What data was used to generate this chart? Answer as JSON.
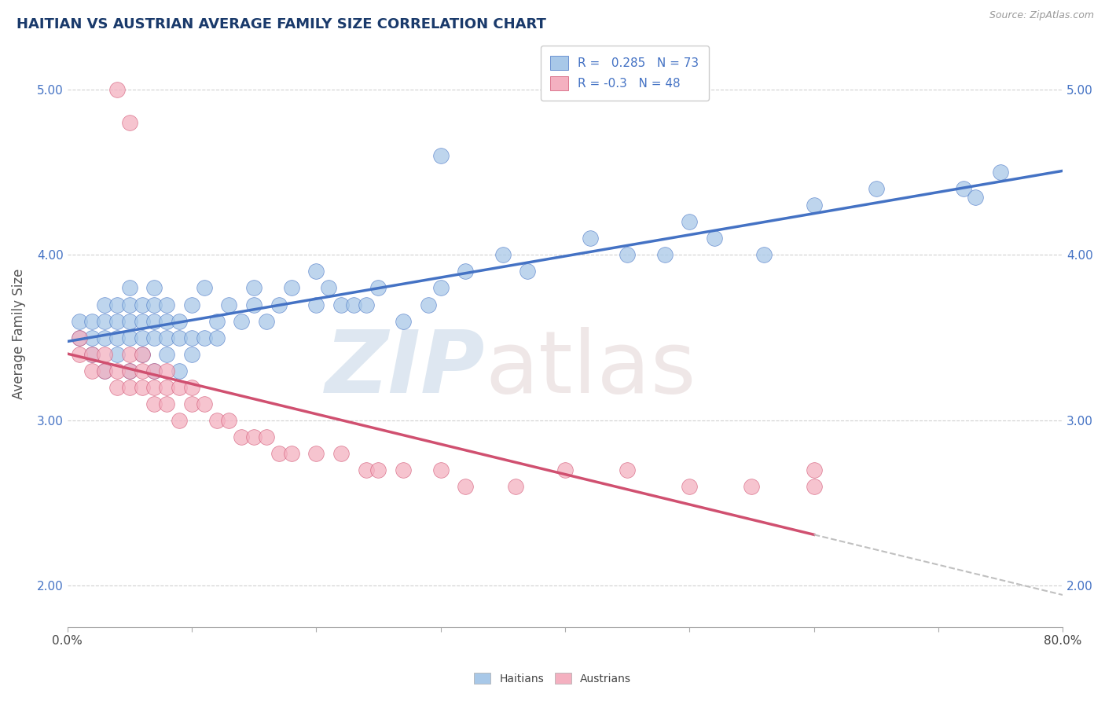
{
  "title": "HAITIAN VS AUSTRIAN AVERAGE FAMILY SIZE CORRELATION CHART",
  "source": "Source: ZipAtlas.com",
  "ylabel": "Average Family Size",
  "xlim": [
    0.0,
    0.8
  ],
  "ylim": [
    1.75,
    5.3
  ],
  "yticks": [
    2.0,
    3.0,
    4.0,
    5.0
  ],
  "xticks": [
    0.0,
    0.1,
    0.2,
    0.3,
    0.4,
    0.5,
    0.6,
    0.7,
    0.8
  ],
  "xtick_labels_show": [
    "0.0%",
    "",
    "",
    "",
    "",
    "",
    "",
    "",
    "80.0%"
  ],
  "haitians_R": 0.285,
  "haitians_N": 73,
  "austrians_R": -0.3,
  "austrians_N": 48,
  "haitians_color": "#a8c8e8",
  "austrians_color": "#f4b0c0",
  "line_haitian_color": "#4472c4",
  "line_austrian_color": "#d05070",
  "line_austrian_dashed_color": "#c0c0c0",
  "haitians_scatter_x": [
    0.01,
    0.01,
    0.02,
    0.02,
    0.02,
    0.03,
    0.03,
    0.03,
    0.03,
    0.04,
    0.04,
    0.04,
    0.04,
    0.05,
    0.05,
    0.05,
    0.05,
    0.05,
    0.06,
    0.06,
    0.06,
    0.06,
    0.07,
    0.07,
    0.07,
    0.07,
    0.07,
    0.08,
    0.08,
    0.08,
    0.08,
    0.09,
    0.09,
    0.09,
    0.1,
    0.1,
    0.1,
    0.11,
    0.11,
    0.12,
    0.12,
    0.13,
    0.14,
    0.15,
    0.15,
    0.16,
    0.17,
    0.18,
    0.2,
    0.2,
    0.21,
    0.22,
    0.23,
    0.24,
    0.25,
    0.27,
    0.29,
    0.3,
    0.3,
    0.32,
    0.35,
    0.37,
    0.42,
    0.45,
    0.48,
    0.5,
    0.52,
    0.56,
    0.6,
    0.65,
    0.72,
    0.75,
    0.73
  ],
  "haitians_scatter_y": [
    3.5,
    3.6,
    3.4,
    3.5,
    3.6,
    3.3,
    3.5,
    3.6,
    3.7,
    3.4,
    3.5,
    3.6,
    3.7,
    3.3,
    3.5,
    3.6,
    3.7,
    3.8,
    3.4,
    3.5,
    3.6,
    3.7,
    3.3,
    3.5,
    3.6,
    3.7,
    3.8,
    3.4,
    3.5,
    3.6,
    3.7,
    3.3,
    3.5,
    3.6,
    3.4,
    3.5,
    3.7,
    3.5,
    3.8,
    3.5,
    3.6,
    3.7,
    3.6,
    3.7,
    3.8,
    3.6,
    3.7,
    3.8,
    3.7,
    3.9,
    3.8,
    3.7,
    3.7,
    3.7,
    3.8,
    3.6,
    3.7,
    3.8,
    4.6,
    3.9,
    4.0,
    3.9,
    4.1,
    4.0,
    4.0,
    4.2,
    4.1,
    4.0,
    4.3,
    4.4,
    4.4,
    4.5,
    4.35
  ],
  "austrians_scatter_x": [
    0.01,
    0.01,
    0.02,
    0.02,
    0.03,
    0.03,
    0.04,
    0.04,
    0.05,
    0.05,
    0.05,
    0.06,
    0.06,
    0.06,
    0.07,
    0.07,
    0.07,
    0.08,
    0.08,
    0.08,
    0.09,
    0.09,
    0.1,
    0.1,
    0.11,
    0.12,
    0.13,
    0.14,
    0.15,
    0.16,
    0.17,
    0.18,
    0.2,
    0.22,
    0.24,
    0.25,
    0.27,
    0.3,
    0.32,
    0.36,
    0.4,
    0.45,
    0.5,
    0.55,
    0.6,
    0.6,
    0.04,
    0.05
  ],
  "austrians_scatter_y": [
    3.4,
    3.5,
    3.3,
    3.4,
    3.3,
    3.4,
    3.2,
    3.3,
    3.2,
    3.3,
    3.4,
    3.2,
    3.3,
    3.4,
    3.1,
    3.2,
    3.3,
    3.1,
    3.2,
    3.3,
    3.0,
    3.2,
    3.1,
    3.2,
    3.1,
    3.0,
    3.0,
    2.9,
    2.9,
    2.9,
    2.8,
    2.8,
    2.8,
    2.8,
    2.7,
    2.7,
    2.7,
    2.7,
    2.6,
    2.6,
    2.7,
    2.7,
    2.6,
    2.6,
    2.6,
    2.7,
    5.0,
    4.8
  ]
}
